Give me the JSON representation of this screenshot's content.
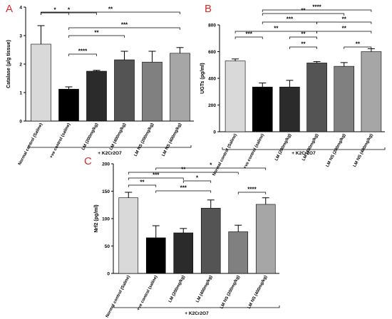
{
  "chart_data": [
    {
      "panel": "A",
      "type": "bar",
      "ylabel": "Catalase (µ/g tissue)",
      "ylim": [
        0,
        4
      ],
      "yticks": [
        "0",
        "1",
        "2",
        "3",
        "4"
      ],
      "categories": [
        "Normal control (Saline)",
        "+ve control (saline)",
        "LM (200mg/kg)",
        "LM (400mg/kg)",
        "LM NS (200mg/kg)",
        "LM NS (400mg/kg)"
      ],
      "values": [
        2.7,
        1.12,
        1.75,
        2.15,
        2.07,
        2.38
      ],
      "errors": [
        0.65,
        0.08,
        0.03,
        0.3,
        0.38,
        0.2
      ],
      "group_label": "+ K2Cr2O7",
      "significance": [
        {
          "from": 0,
          "to": 1,
          "label": "*"
        },
        {
          "from": 0,
          "to": 2,
          "label": "*"
        },
        {
          "from": 0,
          "to": 5,
          "label": "**"
        },
        {
          "from": 1,
          "to": 5,
          "label": "***"
        },
        {
          "from": 1,
          "to": 3,
          "label": "**"
        },
        {
          "from": 1,
          "to": 2,
          "label": "****"
        }
      ]
    },
    {
      "panel": "B",
      "type": "bar",
      "ylabel": "UGTs (pg/ml)",
      "ylim": [
        0,
        800
      ],
      "yticks": [
        "0",
        "200",
        "400",
        "600",
        "800"
      ],
      "categories": [
        "Normal control (Saline)",
        "+ve control (saline)",
        "LM (200mg/kg)",
        "LM (400mg/kg)",
        "LM NS (200mg/kg)",
        "LM NS (400mg/kg)"
      ],
      "values": [
        530,
        335,
        335,
        515,
        490,
        600
      ],
      "errors": [
        15,
        30,
        50,
        10,
        28,
        22
      ],
      "group_label": "+ K2Cr2O7",
      "significance": [
        {
          "from": 1,
          "to": 5,
          "label": "****"
        },
        {
          "from": 1,
          "to": 4,
          "label": "**"
        },
        {
          "from": 1,
          "to": 3,
          "label": "***"
        },
        {
          "from": 3,
          "to": 5,
          "label": "**"
        },
        {
          "from": 0,
          "to": 3,
          "label": "**"
        },
        {
          "from": 3,
          "to": 5,
          "label": "**"
        },
        {
          "from": 2,
          "to": 3,
          "label": "**"
        },
        {
          "from": 0,
          "to": 1,
          "label": "***"
        },
        {
          "from": 2,
          "to": 3,
          "label": "**"
        },
        {
          "from": 4,
          "to": 5,
          "label": "**"
        }
      ]
    },
    {
      "panel": "C",
      "type": "bar",
      "ylabel": "Nrf2 (pg/ml)",
      "ylim": [
        0,
        200
      ],
      "yticks": [
        "0",
        "50",
        "100",
        "150",
        "200"
      ],
      "categories": [
        "Normal control (Saline)",
        "+ve control (saline)",
        "LM (200mg/kg)",
        "LM (400mg/kg)",
        "LM NS (200mg/kg)",
        "LM NS (400mg/kg)"
      ],
      "values": [
        138,
        65,
        74,
        119,
        76,
        126
      ],
      "errors": [
        10,
        22,
        8,
        15,
        12,
        12
      ],
      "group_label": "+ K2Cr2O7",
      "significance": [
        {
          "from": 1,
          "to": 5,
          "label": "*"
        },
        {
          "from": 0,
          "to": 4,
          "label": "**"
        },
        {
          "from": 0,
          "to": 2,
          "label": "***"
        },
        {
          "from": 2,
          "to": 3,
          "label": "*"
        },
        {
          "from": 0,
          "to": 1,
          "label": "**"
        },
        {
          "from": 1,
          "to": 3,
          "label": "***"
        },
        {
          "from": 4,
          "to": 5,
          "label": "****"
        }
      ]
    }
  ],
  "colors": {
    "bars": [
      "#d9d9d9",
      "#000000",
      "#2b2b2b",
      "#545454",
      "#808080",
      "#a6a6a6"
    ],
    "panel_letter": "#d42a2a"
  }
}
